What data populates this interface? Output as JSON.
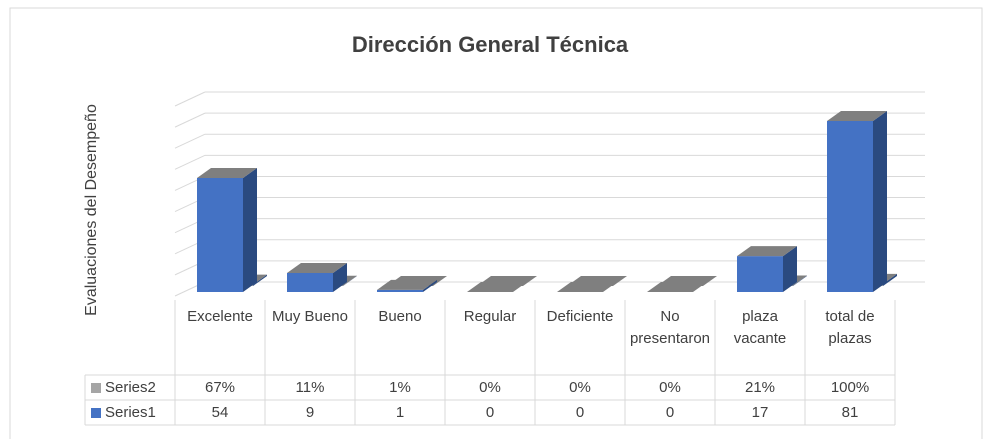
{
  "chart_data": {
    "type": "bar3d",
    "title": "Dirección General Técnica",
    "y_label": "Evaluaciones del Desempeño",
    "categories": [
      "Excelente",
      "Muy Bueno",
      "Bueno",
      "Regular",
      "Deficiente",
      "No presentaron",
      "plaza vacante",
      "total de plazas"
    ],
    "series": [
      {
        "name": "Series1",
        "color": "#4472c4",
        "values": [
          54,
          9,
          1,
          0,
          0,
          0,
          17,
          81
        ]
      },
      {
        "name": "Series2",
        "color": "#a5a5a5",
        "values": [
          0.67,
          0.11,
          0.01,
          0,
          0,
          0,
          0.21,
          1
        ],
        "value_labels": [
          "67%",
          "11%",
          "1%",
          "0%",
          "0%",
          "0%",
          "21%",
          "100%"
        ]
      }
    ],
    "ylim": [
      0,
      90
    ],
    "yticks": [
      0,
      10,
      20,
      30,
      40,
      50,
      60,
      70,
      80,
      90
    ],
    "grid": true,
    "data_table": true
  }
}
